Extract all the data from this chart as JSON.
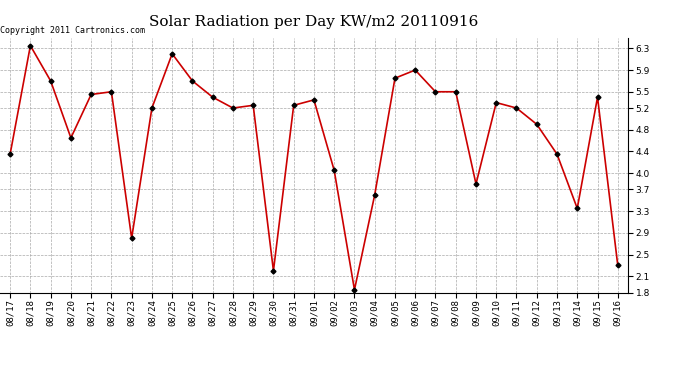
{
  "title": "Solar Radiation per Day KW/m2 20110916",
  "copyright_text": "Copyright 2011 Cartronics.com",
  "dates": [
    "08/17",
    "08/18",
    "08/19",
    "08/20",
    "08/21",
    "08/22",
    "08/23",
    "08/24",
    "08/25",
    "08/26",
    "08/27",
    "08/28",
    "08/29",
    "08/30",
    "08/31",
    "09/01",
    "09/02",
    "09/03",
    "09/04",
    "09/05",
    "09/06",
    "09/07",
    "09/08",
    "09/09",
    "09/10",
    "09/11",
    "09/12",
    "09/13",
    "09/14",
    "09/15",
    "09/16"
  ],
  "values": [
    4.35,
    6.35,
    5.7,
    4.65,
    5.45,
    5.5,
    2.8,
    5.2,
    6.2,
    5.7,
    5.4,
    5.2,
    5.25,
    2.2,
    5.25,
    5.35,
    4.05,
    1.85,
    3.6,
    5.75,
    5.9,
    5.5,
    5.5,
    3.8,
    5.3,
    5.2,
    4.9,
    4.35,
    3.35,
    5.4,
    2.3
  ],
  "line_color": "#cc0000",
  "marker_color": "#000000",
  "marker": "D",
  "marker_size": 2.5,
  "bg_color": "#ffffff",
  "grid_color": "#aaaaaa",
  "ylim": [
    1.8,
    6.5
  ],
  "yticks": [
    1.8,
    2.1,
    2.5,
    2.9,
    3.3,
    3.7,
    4.0,
    4.4,
    4.8,
    5.2,
    5.5,
    5.9,
    6.3
  ],
  "title_fontsize": 11,
  "tick_fontsize": 6.5,
  "copyright_fontsize": 6
}
